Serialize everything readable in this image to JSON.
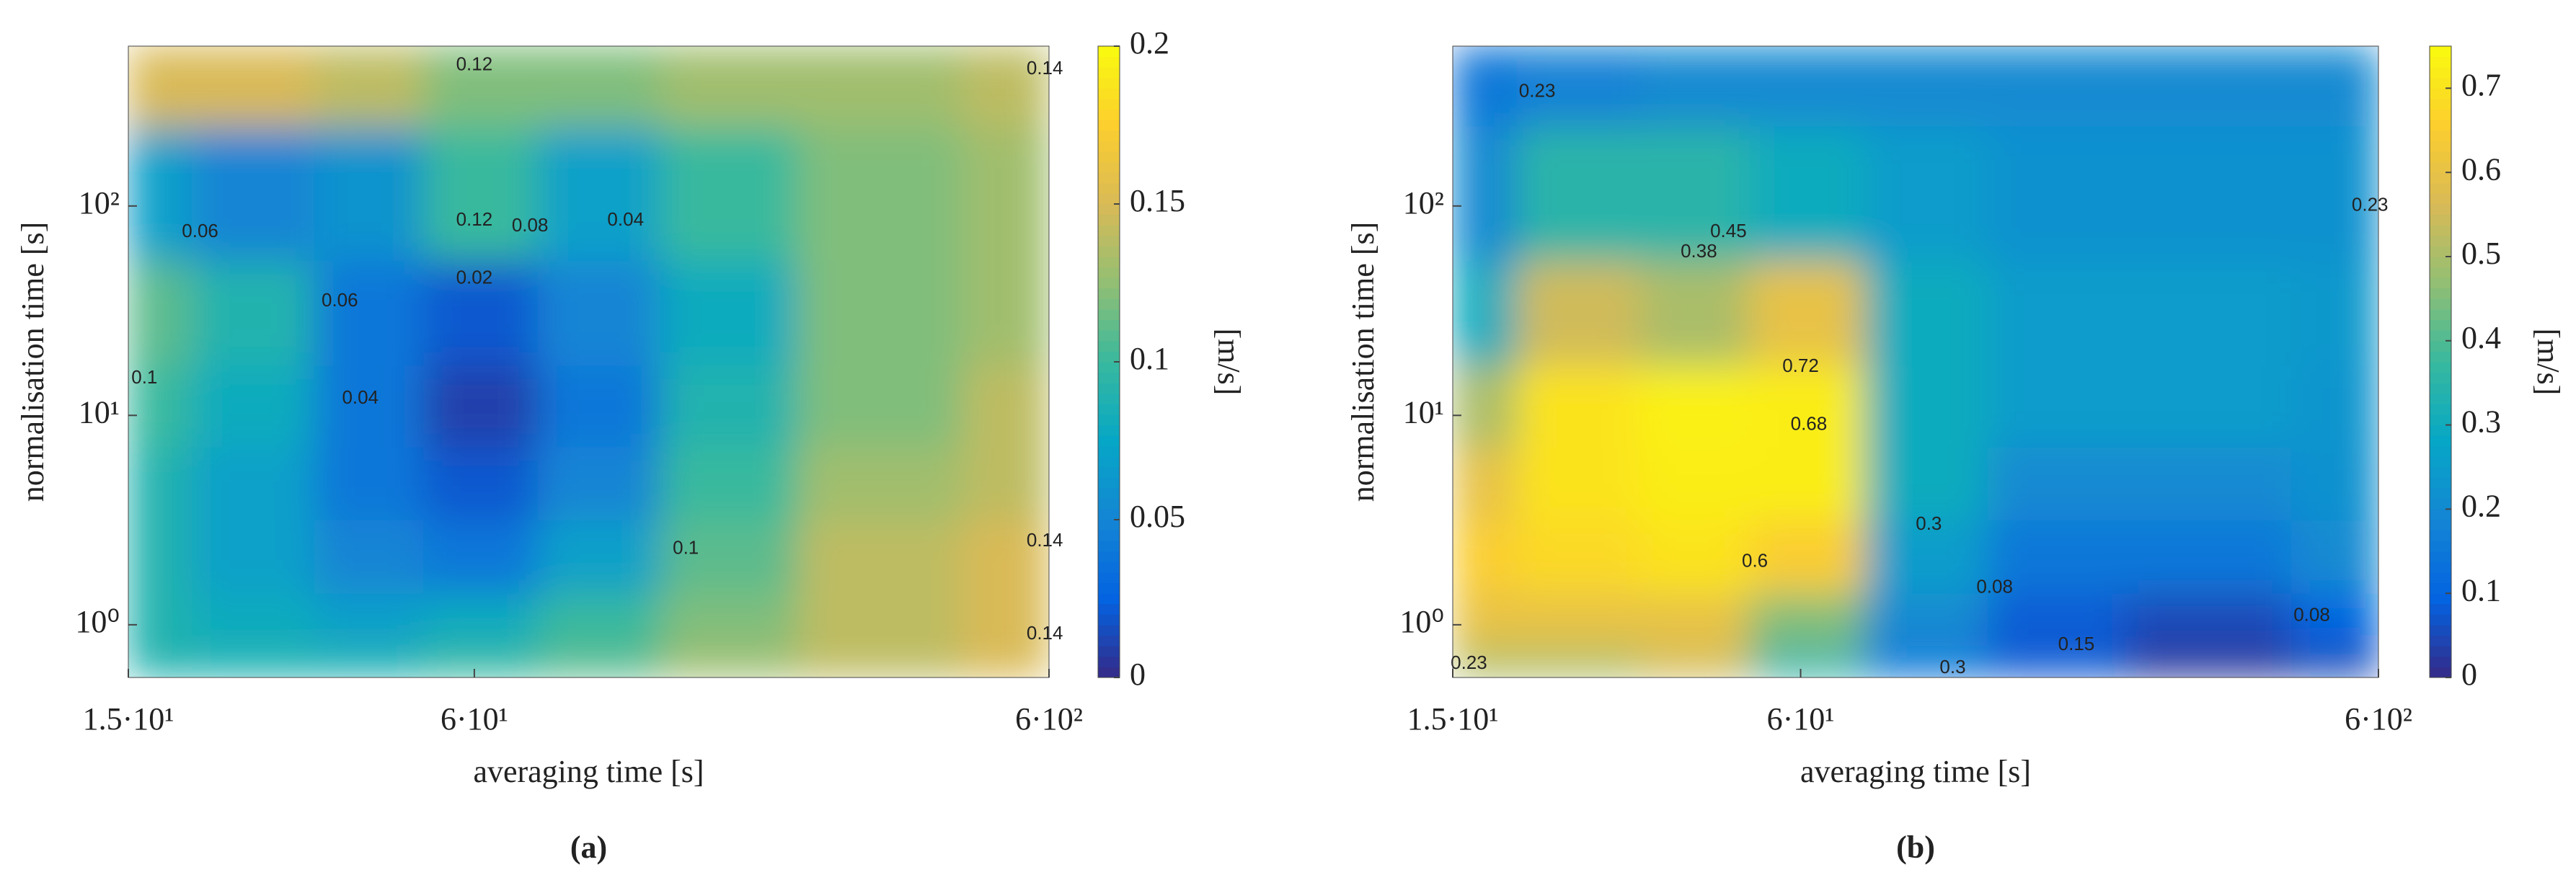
{
  "chart_data": [
    {
      "type": "heatmap",
      "panel_label": "(a)",
      "x_label": "averaging time [s]",
      "y_label": "normalisation time [s]",
      "colorbar_label": "[m/s]",
      "colormap": "parula",
      "xlog": true,
      "ylog": true,
      "xlim": [
        15,
        600
      ],
      "ylim": [
        0.56,
        580
      ],
      "xticks": [
        {
          "value": 15,
          "label": "1.5·10¹"
        },
        {
          "value": 60,
          "label": "6·10¹"
        },
        {
          "value": 600,
          "label": "6·10²"
        }
      ],
      "yticks": [
        {
          "value": 1,
          "label": "10⁰"
        },
        {
          "value": 10,
          "label": "10¹"
        },
        {
          "value": 100,
          "label": "10²"
        }
      ],
      "zlim": [
        0,
        0.2
      ],
      "zticks": [
        0,
        0.05,
        0.1,
        0.15,
        0.2
      ],
      "x": [
        15,
        25,
        40,
        60,
        100,
        160,
        300,
        600
      ],
      "y": [
        0.6,
        1,
        2,
        5,
        10,
        30,
        100,
        580
      ],
      "z": [
        [
          0.09,
          0.09,
          0.09,
          0.1,
          0.11,
          0.13,
          0.14,
          0.15
        ],
        [
          0.09,
          0.08,
          0.07,
          0.08,
          0.1,
          0.12,
          0.14,
          0.15
        ],
        [
          0.09,
          0.07,
          0.05,
          0.04,
          0.07,
          0.11,
          0.14,
          0.15
        ],
        [
          0.09,
          0.07,
          0.04,
          0.02,
          0.05,
          0.1,
          0.13,
          0.14
        ],
        [
          0.1,
          0.08,
          0.04,
          0.01,
          0.04,
          0.09,
          0.12,
          0.14
        ],
        [
          0.11,
          0.09,
          0.04,
          0.02,
          0.05,
          0.08,
          0.12,
          0.13
        ],
        [
          0.07,
          0.05,
          0.06,
          0.1,
          0.07,
          0.1,
          0.12,
          0.13
        ],
        [
          0.15,
          0.15,
          0.14,
          0.12,
          0.12,
          0.13,
          0.13,
          0.14
        ]
      ],
      "contour_labels": [
        {
          "text": "0.12",
          "x": 60,
          "y": 470
        },
        {
          "text": "0.14",
          "x": 590,
          "y": 450
        },
        {
          "text": "0.06",
          "x": 20,
          "y": 75
        },
        {
          "text": "0.12",
          "x": 60,
          "y": 85
        },
        {
          "text": "0.08",
          "x": 75,
          "y": 80
        },
        {
          "text": "0.04",
          "x": 110,
          "y": 85
        },
        {
          "text": "0.02",
          "x": 60,
          "y": 45
        },
        {
          "text": "0.06",
          "x": 35,
          "y": 35
        },
        {
          "text": "0.1",
          "x": 16,
          "y": 15
        },
        {
          "text": "0.04",
          "x": 38,
          "y": 12
        },
        {
          "text": "0.1",
          "x": 140,
          "y": 2.3
        },
        {
          "text": "0.14",
          "x": 590,
          "y": 2.5
        },
        {
          "text": "0.14",
          "x": 590,
          "y": 0.9
        }
      ]
    },
    {
      "type": "heatmap",
      "panel_label": "(b)",
      "x_label": "averaging time [s]",
      "y_label": "normalisation time [s]",
      "colorbar_label": "[m/s]",
      "colormap": "parula",
      "xlog": true,
      "ylog": true,
      "xlim": [
        15,
        600
      ],
      "ylim": [
        0.56,
        580
      ],
      "xticks": [
        {
          "value": 15,
          "label": "1.5·10¹"
        },
        {
          "value": 60,
          "label": "6·10¹"
        },
        {
          "value": 600,
          "label": "6·10²"
        }
      ],
      "yticks": [
        {
          "value": 1,
          "label": "10⁰"
        },
        {
          "value": 10,
          "label": "10¹"
        },
        {
          "value": 100,
          "label": "10²"
        }
      ],
      "zlim": [
        0,
        0.75
      ],
      "zticks": [
        0,
        0.1,
        0.2,
        0.3,
        0.4,
        0.5,
        0.6,
        0.7
      ],
      "x": [
        15,
        25,
        40,
        60,
        100,
        160,
        300,
        600
      ],
      "y": [
        0.6,
        1,
        2,
        5,
        10,
        30,
        100,
        580
      ],
      "z": [
        [
          0.5,
          0.5,
          0.55,
          0.35,
          0.15,
          0.08,
          0.02,
          0.05
        ],
        [
          0.6,
          0.6,
          0.6,
          0.45,
          0.2,
          0.08,
          0.05,
          0.1
        ],
        [
          0.65,
          0.68,
          0.7,
          0.65,
          0.25,
          0.15,
          0.15,
          0.2
        ],
        [
          0.6,
          0.7,
          0.72,
          0.72,
          0.3,
          0.2,
          0.2,
          0.22
        ],
        [
          0.5,
          0.7,
          0.73,
          0.72,
          0.3,
          0.25,
          0.25,
          0.23
        ],
        [
          0.3,
          0.55,
          0.5,
          0.6,
          0.3,
          0.25,
          0.25,
          0.24
        ],
        [
          0.2,
          0.35,
          0.35,
          0.3,
          0.25,
          0.22,
          0.22,
          0.22
        ],
        [
          0.15,
          0.18,
          0.2,
          0.2,
          0.2,
          0.2,
          0.2,
          0.2
        ]
      ],
      "contour_labels": [
        {
          "text": "0.23",
          "x": 21,
          "y": 350
        },
        {
          "text": "0.23",
          "x": 580,
          "y": 100
        },
        {
          "text": "0.38",
          "x": 40,
          "y": 60
        },
        {
          "text": "0.45",
          "x": 45,
          "y": 75
        },
        {
          "text": "0.72",
          "x": 60,
          "y": 17
        },
        {
          "text": "0.68",
          "x": 62,
          "y": 9
        },
        {
          "text": "0.6",
          "x": 50,
          "y": 2
        },
        {
          "text": "0.3",
          "x": 100,
          "y": 3
        },
        {
          "text": "0.08",
          "x": 130,
          "y": 1.5
        },
        {
          "text": "0.15",
          "x": 180,
          "y": 0.8
        },
        {
          "text": "0.08",
          "x": 460,
          "y": 1.1
        },
        {
          "text": "0.3",
          "x": 110,
          "y": 0.62
        },
        {
          "text": "0.23",
          "x": 16,
          "y": 0.65
        }
      ]
    }
  ]
}
